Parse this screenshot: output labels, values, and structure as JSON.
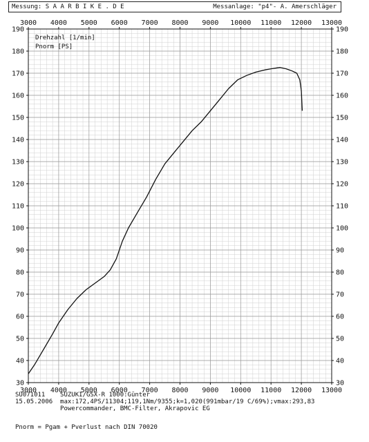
{
  "header": {
    "left": "Messung: S A A R B I K E . D E",
    "right": "Messanlage: \"p4\"- A. Amerschläger"
  },
  "chart_data": {
    "type": "line",
    "x_ticks": [
      3000,
      4000,
      5000,
      6000,
      7000,
      8000,
      9000,
      10000,
      11000,
      12000,
      13000
    ],
    "y_ticks": [
      30,
      40,
      50,
      60,
      70,
      80,
      90,
      100,
      110,
      120,
      130,
      140,
      150,
      160,
      170,
      180,
      190
    ],
    "xlim": [
      3000,
      13000
    ],
    "ylim": [
      30,
      190
    ],
    "grid": true,
    "legend_lines": [
      "Drehzahl [1/min]",
      "Pnorm [PS]"
    ],
    "series": [
      {
        "name": "Pnorm [PS]",
        "x": [
          3000,
          3200,
          3500,
          3800,
          4000,
          4300,
          4600,
          4900,
          5200,
          5500,
          5700,
          5900,
          6100,
          6300,
          6600,
          6900,
          7200,
          7500,
          7800,
          8100,
          8400,
          8700,
          9000,
          9300,
          9600,
          9900,
          10200,
          10500,
          10800,
          11000,
          11200,
          11300,
          11500,
          11700,
          11850,
          11950,
          12000,
          12030
        ],
        "y": [
          34,
          38,
          45,
          52,
          57,
          63,
          68,
          72,
          75,
          78,
          81,
          86,
          94,
          100,
          107,
          114,
          122,
          129,
          134,
          139,
          144,
          148,
          153,
          158,
          163,
          167,
          169,
          170.5,
          171.5,
          172,
          172.4,
          172.6,
          172,
          171,
          170,
          167,
          162,
          153
        ]
      }
    ]
  },
  "footer": {
    "line1": "SU071011    SUZUKI/GSX-R 1000:Günter",
    "line2": "15.05.2006  max:172,4PS/11304;119,1Nm/9355;k=1,020(991mbar/19 C/69%);vmax:293,83",
    "line3": "            Powercommander, BMC-Filter, Akrapovic EG",
    "formula": "Pnorm = Pgam + Pverlust nach DIN 70020"
  }
}
